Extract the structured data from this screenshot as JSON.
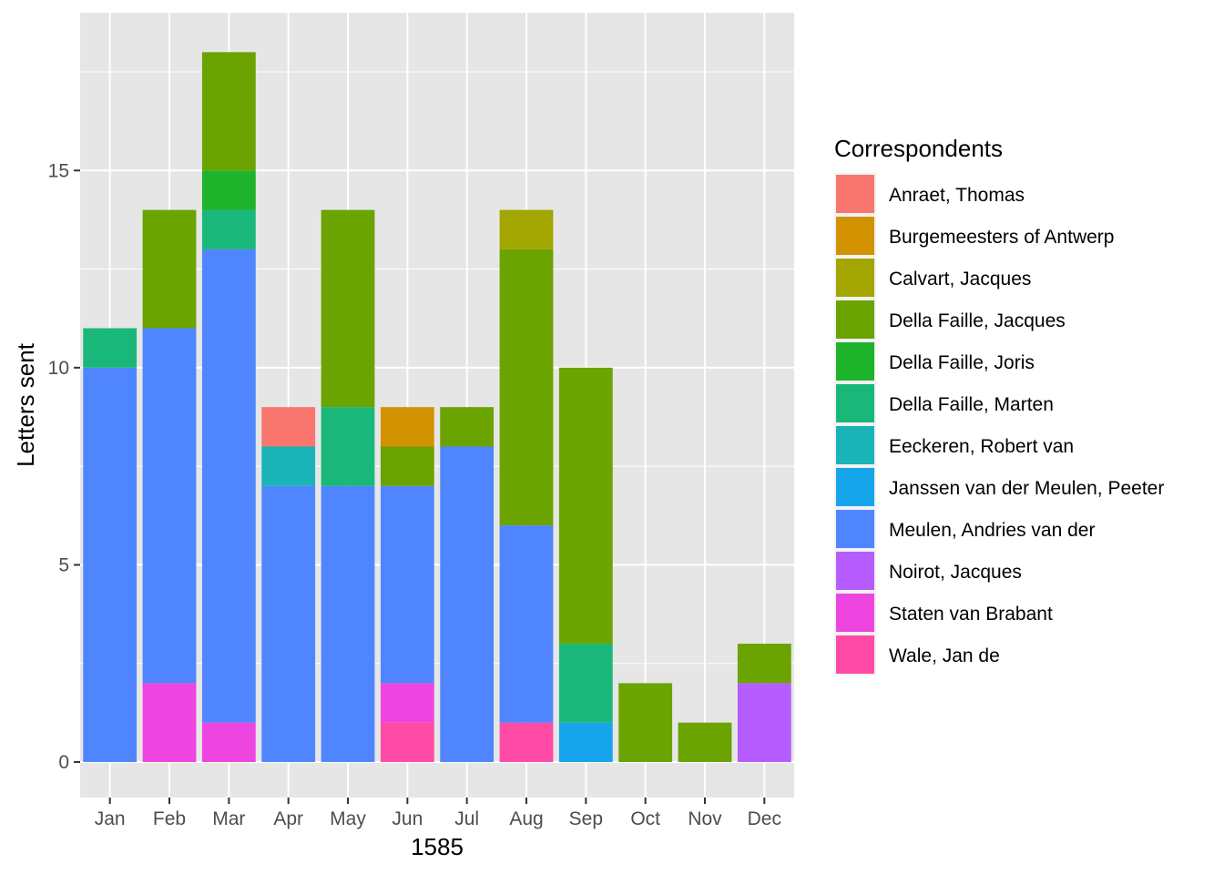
{
  "chart_data": {
    "type": "bar",
    "stacked": true,
    "title": "",
    "xlabel": "1585",
    "ylabel": "Letters sent",
    "ylim": [
      -0.9,
      19
    ],
    "yticks": [
      0,
      5,
      10,
      15
    ],
    "grid": true,
    "legend_position": "right",
    "legend_title": "Correspondents",
    "categories": [
      "Jan",
      "Feb",
      "Mar",
      "Apr",
      "May",
      "Jun",
      "Jul",
      "Aug",
      "Sep",
      "Oct",
      "Nov",
      "Dec"
    ],
    "series": [
      {
        "name": "Anraet, Thomas",
        "color": "#F8766D",
        "values": [
          0,
          0,
          0,
          1,
          0,
          0,
          0,
          0,
          0,
          0,
          0,
          0
        ]
      },
      {
        "name": "Burgemeesters of Antwerp",
        "color": "#D39200",
        "values": [
          0,
          0,
          0,
          0,
          0,
          1,
          0,
          0,
          0,
          0,
          0,
          0
        ]
      },
      {
        "name": "Calvart, Jacques",
        "color": "#A3A500",
        "values": [
          0,
          0,
          0,
          0,
          0,
          0,
          0,
          1,
          0,
          0,
          0,
          0
        ]
      },
      {
        "name": "Della Faille, Jacques",
        "color": "#6BA300",
        "values": [
          0,
          3,
          3,
          0,
          5,
          1,
          1,
          7,
          7,
          2,
          1,
          1
        ]
      },
      {
        "name": "Della Faille, Joris",
        "color": "#1DB32A",
        "values": [
          0,
          0,
          1,
          0,
          0,
          0,
          0,
          0,
          0,
          0,
          0,
          0
        ]
      },
      {
        "name": "Della Faille, Marten",
        "color": "#1AB77A",
        "values": [
          1,
          0,
          1,
          0,
          2,
          0,
          0,
          0,
          2,
          0,
          0,
          0
        ]
      },
      {
        "name": "Eeckeren, Robert van",
        "color": "#19B3B8",
        "values": [
          0,
          0,
          0,
          1,
          0,
          0,
          0,
          0,
          0,
          0,
          0,
          0
        ]
      },
      {
        "name": "Janssen van der Meulen, Peeter",
        "color": "#14A5EB",
        "values": [
          0,
          0,
          0,
          0,
          0,
          0,
          0,
          0,
          1,
          0,
          0,
          0
        ]
      },
      {
        "name": "Meulen, Andries van der",
        "color": "#4F86FF",
        "values": [
          10,
          9,
          12,
          7,
          7,
          5,
          8,
          5,
          0,
          0,
          0,
          0
        ]
      },
      {
        "name": "Noirot, Jacques",
        "color": "#B65DFF",
        "values": [
          0,
          0,
          0,
          0,
          0,
          0,
          0,
          0,
          0,
          0,
          0,
          2
        ]
      },
      {
        "name": "Staten van Brabant",
        "color": "#EE45E1",
        "values": [
          0,
          2,
          1,
          0,
          0,
          1,
          0,
          0,
          0,
          0,
          0,
          0
        ]
      },
      {
        "name": "Wale, Jan de",
        "color": "#FF4BA5",
        "values": [
          0,
          0,
          0,
          0,
          0,
          1,
          0,
          1,
          0,
          0,
          0,
          0
        ]
      }
    ],
    "panel_background": "#E6E6E6",
    "grid_color": "#FFFFFF"
  }
}
